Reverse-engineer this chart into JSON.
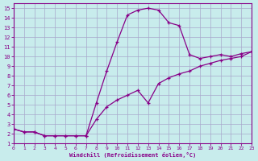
{
  "xlabel": "Windchill (Refroidissement éolien,°C)",
  "bg_color": "#c8ecec",
  "grid_color": "#a8a8cc",
  "line_color": "#880088",
  "x_line": [
    0,
    1,
    2,
    3,
    4,
    5,
    6,
    7,
    8,
    9,
    10,
    11,
    12,
    13,
    14,
    15,
    16,
    17,
    18,
    19,
    20,
    21,
    22,
    23
  ],
  "y_upper": [
    2.5,
    2.2,
    2.2,
    1.8,
    1.8,
    1.8,
    1.8,
    1.8,
    5.2,
    8.5,
    11.5,
    14.3,
    14.8,
    15.0,
    14.8,
    13.5,
    13.2,
    10.2,
    9.8,
    10.0,
    10.2,
    10.0,
    10.3,
    10.5
  ],
  "y_lower": [
    2.5,
    2.2,
    2.2,
    1.8,
    1.8,
    1.8,
    1.8,
    1.8,
    3.5,
    4.8,
    5.5,
    6.0,
    6.5,
    5.2,
    7.2,
    7.8,
    8.2,
    8.5,
    9.0,
    9.3,
    9.6,
    9.8,
    10.0,
    10.5
  ],
  "xlim": [
    0,
    23
  ],
  "ylim": [
    1,
    15.5
  ],
  "x_ticks": [
    0,
    1,
    2,
    3,
    4,
    5,
    6,
    7,
    8,
    9,
    10,
    11,
    12,
    13,
    14,
    15,
    16,
    17,
    18,
    19,
    20,
    21,
    22,
    23
  ],
  "y_ticks": [
    1,
    2,
    3,
    4,
    5,
    6,
    7,
    8,
    9,
    10,
    11,
    12,
    13,
    14,
    15
  ]
}
